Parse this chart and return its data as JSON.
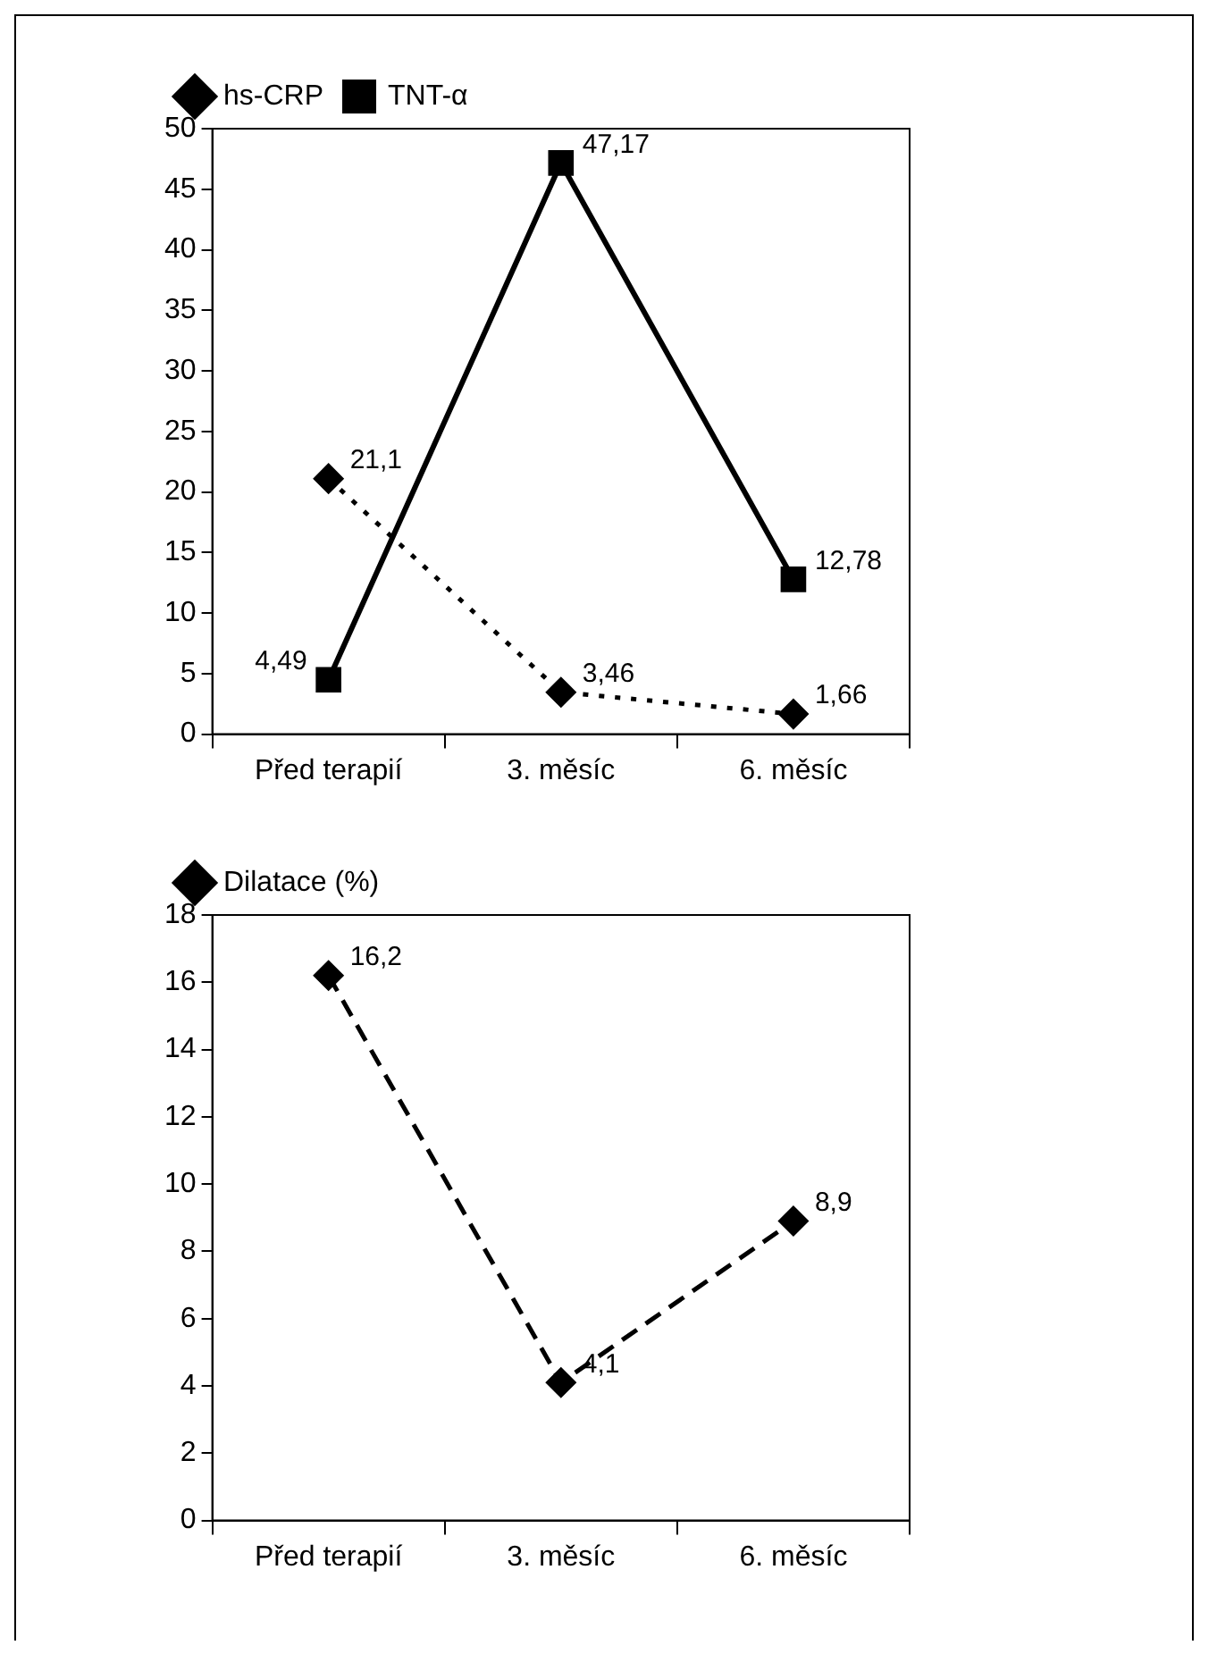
{
  "chart_data": [
    {
      "type": "line",
      "categories": [
        "Před terapií",
        "3. měsíc",
        "6. měsíc"
      ],
      "ylim": [
        0,
        50
      ],
      "yticks": [
        0,
        5,
        10,
        15,
        20,
        25,
        30,
        35,
        40,
        45,
        50
      ],
      "grid": false,
      "legend": "top left",
      "series": [
        {
          "name": "hs-CRP",
          "color": "#000000",
          "values": [
            21.1,
            3.46,
            1.66
          ],
          "value_labels": [
            "21,1",
            "3,46",
            "1,66"
          ],
          "marker": "diamond",
          "line_style": "dotted"
        },
        {
          "name": "TNT-α",
          "color": "#000000",
          "values": [
            4.49,
            47.17,
            12.78
          ],
          "value_labels": [
            "4,49",
            "47,17",
            "12,78"
          ],
          "marker": "square",
          "line_style": "solid"
        }
      ]
    },
    {
      "type": "line",
      "categories": [
        "Před terapií",
        "3. měsíc",
        "6. měsíc"
      ],
      "ylim": [
        0,
        18
      ],
      "yticks": [
        0,
        2,
        4,
        6,
        8,
        10,
        12,
        14,
        16,
        18
      ],
      "grid": false,
      "legend": "top left",
      "series": [
        {
          "name": "Dilatace (%)",
          "color": "#000000",
          "values": [
            16.2,
            4.1,
            8.9
          ],
          "value_labels": [
            "16,2",
            "4,1",
            "8,9"
          ],
          "marker": "diamond",
          "line_style": "dashed"
        }
      ]
    }
  ]
}
